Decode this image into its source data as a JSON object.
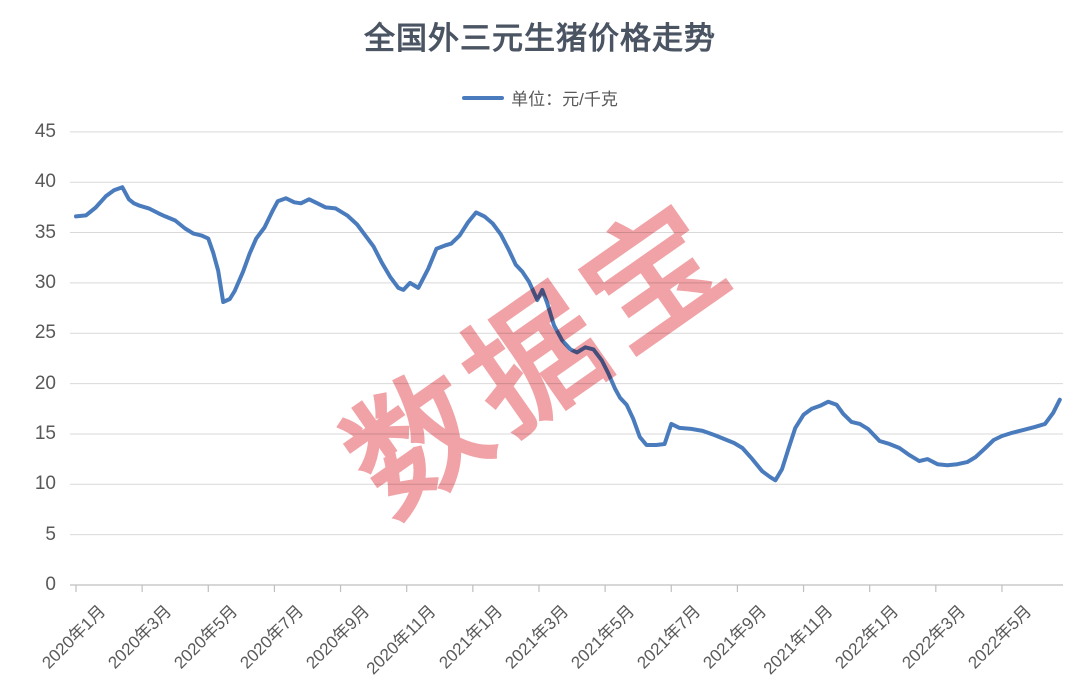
{
  "title": "全国外三元生猪价格走势",
  "legend": {
    "label": "单位：元/千克"
  },
  "watermark": "数据宝",
  "colors": {
    "line": "#4a7cbd",
    "title": "#4a5462",
    "axis_label": "#595959",
    "gridline": "#d9d9d9",
    "axis_line": "#bfbfbf",
    "watermark": "#f1a2a6",
    "background": "#ffffff"
  },
  "chart_data": {
    "type": "line",
    "title": "全国外三元生猪价格走势",
    "series_name": "单位：元/千克",
    "xlabel": "",
    "ylabel": "",
    "ylim": [
      0,
      45
    ],
    "y_tick_step": 5,
    "y_ticks": [
      0,
      5,
      10,
      15,
      20,
      25,
      30,
      35,
      40,
      45
    ],
    "x_tick_labels": [
      "2020年1月",
      "2020年3月",
      "2020年5月",
      "2020年7月",
      "2020年9月",
      "2020年11月",
      "2021年1月",
      "2021年3月",
      "2021年5月",
      "2021年7月",
      "2021年9月",
      "2021年11月",
      "2022年1月",
      "2022年3月",
      "2022年5月"
    ],
    "x_unit": "months since 2020年1月 (fractional, ~weekly sampling)",
    "grid": true,
    "legend_position": "top",
    "points": [
      [
        0,
        36.6
      ],
      [
        0.3,
        36.7
      ],
      [
        0.6,
        37.5
      ],
      [
        0.9,
        38.6
      ],
      [
        1.15,
        39.2
      ],
      [
        1.4,
        39.5
      ],
      [
        1.6,
        38.3
      ],
      [
        1.75,
        37.9
      ],
      [
        1.9,
        37.7
      ],
      [
        2.2,
        37.4
      ],
      [
        2.5,
        36.9
      ],
      [
        2.7,
        36.6
      ],
      [
        3.0,
        36.2
      ],
      [
        3.3,
        35.4
      ],
      [
        3.55,
        34.9
      ],
      [
        3.8,
        34.7
      ],
      [
        4.0,
        34.4
      ],
      [
        4.15,
        33.0
      ],
      [
        4.3,
        31.2
      ],
      [
        4.45,
        28.1
      ],
      [
        4.65,
        28.4
      ],
      [
        4.8,
        29.2
      ],
      [
        5.05,
        31.1
      ],
      [
        5.25,
        32.9
      ],
      [
        5.45,
        34.4
      ],
      [
        5.7,
        35.5
      ],
      [
        5.95,
        37.2
      ],
      [
        6.1,
        38.1
      ],
      [
        6.35,
        38.4
      ],
      [
        6.6,
        38.0
      ],
      [
        6.8,
        37.9
      ],
      [
        7.05,
        38.3
      ],
      [
        7.3,
        37.9
      ],
      [
        7.55,
        37.5
      ],
      [
        7.85,
        37.4
      ],
      [
        8.2,
        36.7
      ],
      [
        8.5,
        35.8
      ],
      [
        8.75,
        34.7
      ],
      [
        9.0,
        33.6
      ],
      [
        9.25,
        32.0
      ],
      [
        9.5,
        30.6
      ],
      [
        9.75,
        29.5
      ],
      [
        9.9,
        29.3
      ],
      [
        10.1,
        30.0
      ],
      [
        10.35,
        29.5
      ],
      [
        10.65,
        31.4
      ],
      [
        10.9,
        33.4
      ],
      [
        11.15,
        33.7
      ],
      [
        11.35,
        33.9
      ],
      [
        11.6,
        34.7
      ],
      [
        11.85,
        36.0
      ],
      [
        12.1,
        37.0
      ],
      [
        12.35,
        36.6
      ],
      [
        12.6,
        35.9
      ],
      [
        12.85,
        34.8
      ],
      [
        13.1,
        33.2
      ],
      [
        13.3,
        31.8
      ],
      [
        13.5,
        31.1
      ],
      [
        13.7,
        30.1
      ],
      [
        13.95,
        28.3
      ],
      [
        14.1,
        29.3
      ],
      [
        14.25,
        28.0
      ],
      [
        14.45,
        25.8
      ],
      [
        14.7,
        24.3
      ],
      [
        14.95,
        23.4
      ],
      [
        15.15,
        23.1
      ],
      [
        15.4,
        23.6
      ],
      [
        15.65,
        23.4
      ],
      [
        15.9,
        22.3
      ],
      [
        16.1,
        21.0
      ],
      [
        16.3,
        19.5
      ],
      [
        16.45,
        18.6
      ],
      [
        16.65,
        17.9
      ],
      [
        16.85,
        16.5
      ],
      [
        17.05,
        14.7
      ],
      [
        17.25,
        13.9
      ],
      [
        17.55,
        13.9
      ],
      [
        17.8,
        14.0
      ],
      [
        18.0,
        16.0
      ],
      [
        18.25,
        15.6
      ],
      [
        18.6,
        15.5
      ],
      [
        18.95,
        15.3
      ],
      [
        19.3,
        14.9
      ],
      [
        19.6,
        14.5
      ],
      [
        19.9,
        14.1
      ],
      [
        20.15,
        13.6
      ],
      [
        20.45,
        12.5
      ],
      [
        20.75,
        11.3
      ],
      [
        21.0,
        10.7
      ],
      [
        21.15,
        10.4
      ],
      [
        21.35,
        11.5
      ],
      [
        21.55,
        13.6
      ],
      [
        21.75,
        15.6
      ],
      [
        22.0,
        16.9
      ],
      [
        22.25,
        17.5
      ],
      [
        22.5,
        17.8
      ],
      [
        22.75,
        18.2
      ],
      [
        23.0,
        17.9
      ],
      [
        23.2,
        17.0
      ],
      [
        23.45,
        16.2
      ],
      [
        23.7,
        16.0
      ],
      [
        23.95,
        15.5
      ],
      [
        24.3,
        14.3
      ],
      [
        24.6,
        14.0
      ],
      [
        24.9,
        13.6
      ],
      [
        25.2,
        12.9
      ],
      [
        25.5,
        12.3
      ],
      [
        25.75,
        12.5
      ],
      [
        26.05,
        12.0
      ],
      [
        26.35,
        11.9
      ],
      [
        26.65,
        12.0
      ],
      [
        26.95,
        12.2
      ],
      [
        27.2,
        12.7
      ],
      [
        27.5,
        13.6
      ],
      [
        27.75,
        14.4
      ],
      [
        28.0,
        14.8
      ],
      [
        28.3,
        15.1
      ],
      [
        28.65,
        15.4
      ],
      [
        29.0,
        15.7
      ],
      [
        29.3,
        16.0
      ],
      [
        29.55,
        17.1
      ],
      [
        29.75,
        18.4
      ]
    ]
  }
}
